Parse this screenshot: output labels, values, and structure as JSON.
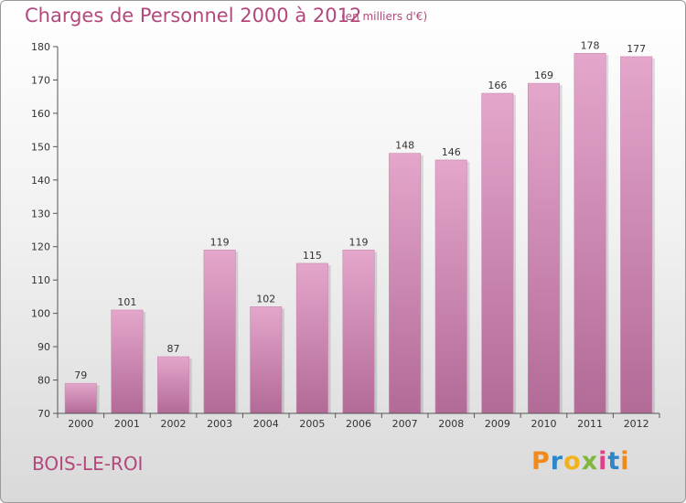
{
  "header": {
    "title": "Charges de Personnel 2000 à 2012",
    "subtitle": "(en milliers d'€)"
  },
  "footer": {
    "town": "BOIS-LE-ROI",
    "logo": [
      "P",
      "r",
      "o",
      "x",
      "i",
      "t",
      "i"
    ]
  },
  "colors": {
    "bar_top": "#e4a6cb",
    "bar_bottom": "#b26a97",
    "text_accent": "#b3487c"
  },
  "chart_data": {
    "type": "bar",
    "categories": [
      "2000",
      "2001",
      "2002",
      "2003",
      "2004",
      "2005",
      "2006",
      "2007",
      "2008",
      "2009",
      "2010",
      "2011",
      "2012"
    ],
    "values": [
      79,
      101,
      87,
      119,
      102,
      115,
      119,
      148,
      146,
      166,
      169,
      178,
      177
    ],
    "ylim": [
      70,
      180
    ],
    "yticks": [
      70,
      80,
      90,
      100,
      110,
      120,
      130,
      140,
      150,
      160,
      170,
      180
    ],
    "grid": false,
    "data_labels": true
  }
}
